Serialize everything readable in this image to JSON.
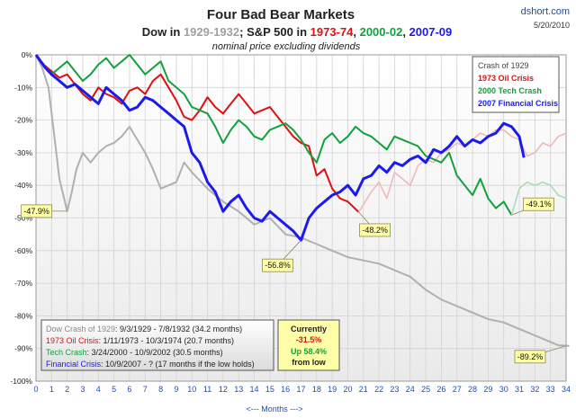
{
  "header": {
    "site": "dshort.com",
    "date": "5/20/2010",
    "title": "Four Bad Bear Markets",
    "subtitle_parts": [
      {
        "text": "Dow in ",
        "color": "#222222"
      },
      {
        "text": "1929-1932",
        "color": "#a0a0a0"
      },
      {
        "text": "; S&P 500 in ",
        "color": "#222222"
      },
      {
        "text": "1973-74",
        "color": "#dd1111"
      },
      {
        "text": ", ",
        "color": "#222222"
      },
      {
        "text": "2000-02",
        "color": "#11a13a"
      },
      {
        "text": ", ",
        "color": "#222222"
      },
      {
        "text": "2007-09",
        "color": "#1a1aee"
      }
    ],
    "note": "nominal price excluding dividends"
  },
  "legend": {
    "title": "Crash of 1929",
    "items": [
      {
        "label": "1973 Oil Crisis",
        "color": "#dd1111"
      },
      {
        "label": "2000 Tech Crash",
        "color": "#11a13a"
      },
      {
        "label": "2007 Financial Crisis",
        "color": "#1a1aee"
      }
    ]
  },
  "info_box": {
    "rows": [
      {
        "name": "Dow Crash of 1929",
        "dates": ": 9/3/1929  - 7/8/1932  (34.2 months)",
        "color": "#888888"
      },
      {
        "name": "1973 Oil Crisis",
        "dates": ": 1/11/1973 - 10/3/1974  (20.7 months)",
        "color": "#dd1111"
      },
      {
        "name": "Tech Crash",
        "dates": ":  3/24/2000  - 10/9/2002  (30.5 months)",
        "color": "#11a13a"
      },
      {
        "name": "Financial Crisis",
        "dates": ": 10/9/2007 - ?  (17 months if the low holds)",
        "color": "#1a1aee"
      }
    ]
  },
  "current_box": {
    "line1": "Currently",
    "line2": "-31.5%",
    "line3": "Up 58.4%",
    "line4": "from low"
  },
  "chart_data": {
    "type": "line",
    "title": "Four Bad Bear Markets",
    "xlabel": "<---  Months  --->",
    "ylabel": "",
    "xlim": [
      0,
      34
    ],
    "ylim": [
      -100,
      0
    ],
    "x_ticks": [
      0,
      1,
      2,
      3,
      4,
      5,
      6,
      7,
      8,
      9,
      10,
      11,
      12,
      13,
      14,
      15,
      16,
      17,
      18,
      19,
      20,
      21,
      22,
      23,
      24,
      25,
      26,
      27,
      28,
      29,
      30,
      31,
      32,
      33,
      34
    ],
    "y_ticks": [
      0,
      -10,
      -20,
      -30,
      -40,
      -50,
      -60,
      -70,
      -80,
      -90,
      -100
    ],
    "y_tick_labels": [
      "0%",
      "-10%",
      "-20%",
      "-30%",
      "-40%",
      "-50%",
      "-60%",
      "-70%",
      "-80%",
      "-90%",
      "-100%"
    ],
    "grid": true,
    "legend_position": "top-right",
    "series": [
      {
        "name": "Crash of 1929",
        "color": "#b0b0b0",
        "x": [
          0,
          0.4,
          0.8,
          1.1,
          1.5,
          2,
          2.3,
          2.6,
          3,
          3.5,
          4,
          4.5,
          5,
          5.5,
          6,
          6.5,
          7,
          7.5,
          8,
          8.5,
          9,
          9.5,
          10,
          11,
          12,
          13,
          14,
          15,
          16,
          17,
          18,
          19,
          20,
          21,
          22,
          23,
          24,
          25,
          26,
          27,
          28,
          29,
          30,
          31,
          32,
          33,
          33.5,
          34.2
        ],
        "y": [
          0,
          -4,
          -10,
          -22,
          -38,
          -47.9,
          -42,
          -35,
          -30,
          -33,
          -30,
          -28,
          -27,
          -25,
          -22,
          -26,
          -30,
          -35,
          -41,
          -40,
          -39,
          -33,
          -36,
          -41,
          -45,
          -48,
          -52,
          -50,
          -55,
          -56,
          -58,
          -60,
          -62,
          -63,
          -64,
          -66,
          -68,
          -72,
          -75,
          -77,
          -79,
          -81,
          -82,
          -84,
          -86,
          -88,
          -89,
          -89.2
        ]
      },
      {
        "name": "1973 Oil Crisis",
        "color": "#dd1111",
        "x": [
          0,
          0.5,
          1,
          1.5,
          2,
          2.5,
          3,
          3.5,
          4,
          4.5,
          5,
          5.5,
          6,
          6.5,
          7,
          7.5,
          8,
          8.5,
          9,
          9.5,
          10,
          10.5,
          11,
          11.5,
          12,
          12.5,
          13,
          13.5,
          14,
          14.5,
          15,
          15.5,
          16,
          16.5,
          17,
          17.5,
          18,
          18.5,
          19,
          19.5,
          20,
          20.7
        ],
        "y": [
          0,
          -3,
          -5,
          -7,
          -6,
          -9,
          -12,
          -14,
          -10,
          -12,
          -13,
          -15,
          -11,
          -10,
          -12,
          -8,
          -6,
          -10,
          -14,
          -19,
          -20,
          -17,
          -13,
          -16,
          -18,
          -15,
          -12,
          -15,
          -18,
          -17,
          -16,
          -19,
          -22,
          -25,
          -27,
          -28,
          -37,
          -35,
          -41,
          -44,
          -45,
          -48.2
        ]
      },
      {
        "name": "1973 Oil Crisis (after trough)",
        "color": "#f2b8b8",
        "x": [
          20.7,
          21.5,
          22,
          22.5,
          23,
          23.5,
          24,
          24.5,
          25,
          25.5,
          26,
          26.5,
          27,
          27.5,
          28,
          28.5,
          29,
          29.5,
          30,
          30.5,
          31,
          31.5,
          32,
          32.5,
          33,
          33.5,
          34
        ],
        "y": [
          -48.2,
          -42,
          -39,
          -44,
          -36,
          -38,
          -40,
          -34,
          -32,
          -33,
          -30,
          -29,
          -27,
          -28,
          -26,
          -24,
          -25,
          -23,
          -23,
          -25,
          -26,
          -31,
          -30,
          -27,
          -28,
          -25,
          -24
        ]
      },
      {
        "name": "2000 Tech Crash",
        "color": "#11a13a",
        "x": [
          0,
          0.5,
          1,
          1.5,
          2,
          2.5,
          3,
          3.5,
          4,
          4.5,
          5,
          5.5,
          6,
          6.5,
          7,
          7.5,
          8,
          8.5,
          9,
          9.5,
          10,
          10.5,
          11,
          11.5,
          12,
          12.5,
          13,
          13.5,
          14,
          14.5,
          15,
          15.5,
          16,
          16.5,
          17,
          17.5,
          18,
          18.5,
          19,
          19.5,
          20,
          20.5,
          21,
          21.5,
          22,
          22.5,
          23,
          23.5,
          24,
          24.5,
          25,
          25.5,
          26,
          26.5,
          27,
          27.5,
          28,
          28.5,
          29,
          29.5,
          30,
          30.5
        ],
        "y": [
          0,
          -3,
          -6,
          -4,
          -2,
          -5,
          -8,
          -6,
          -3,
          -1,
          -4,
          -2,
          0,
          -3,
          -6,
          -4,
          -2,
          -8,
          -10,
          -12,
          -16,
          -17,
          -18,
          -22,
          -27,
          -23,
          -20,
          -22,
          -25,
          -26,
          -23,
          -22,
          -21,
          -23,
          -26,
          -30,
          -33,
          -26,
          -24,
          -27,
          -25,
          -22,
          -24,
          -25,
          -27,
          -29,
          -25,
          -26,
          -27,
          -28,
          -31,
          -32,
          -33,
          -30,
          -37,
          -40,
          -43,
          -38,
          -44,
          -47,
          -45,
          -49.1
        ]
      },
      {
        "name": "2000 Tech Crash (after trough)",
        "color": "#a8dcb8",
        "x": [
          30.5,
          31,
          31.5,
          32,
          32.5,
          33,
          33.5,
          34
        ],
        "y": [
          -49.1,
          -41,
          -39,
          -40,
          -39,
          -40,
          -43,
          -44
        ]
      },
      {
        "name": "2007 Financial Crisis",
        "color": "#1a1aee",
        "x": [
          0,
          0.3,
          0.6,
          1,
          1.5,
          2,
          2.5,
          3,
          3.5,
          4,
          4.5,
          5,
          5.5,
          6,
          6.5,
          7,
          7.5,
          8,
          8.5,
          9,
          9.5,
          10,
          10.5,
          11,
          11.5,
          12,
          12.5,
          13,
          13.5,
          14,
          14.5,
          15,
          15.5,
          16,
          16.5,
          17,
          17.5,
          18,
          18.5,
          19,
          19.5,
          20,
          20.5,
          21,
          21.5,
          22,
          22.5,
          23,
          23.5,
          24,
          24.5,
          25,
          25.5,
          26,
          26.5,
          27,
          27.5,
          28,
          28.5,
          29,
          29.5,
          30,
          30.5,
          31,
          31.3
        ],
        "y": [
          0,
          -2,
          -4,
          -6,
          -8,
          -10,
          -9,
          -11,
          -13,
          -15,
          -10,
          -12,
          -14,
          -17,
          -16,
          -13,
          -14,
          -16,
          -18,
          -20,
          -22,
          -30,
          -33,
          -39,
          -42,
          -48,
          -45,
          -43,
          -47,
          -50,
          -51,
          -48,
          -50,
          -52,
          -54,
          -56.8,
          -50,
          -47,
          -45,
          -43,
          -42,
          -40,
          -43,
          -38,
          -37,
          -34,
          -36,
          -33,
          -34,
          -32,
          -31,
          -33,
          -29,
          -30,
          -28,
          -25,
          -28,
          -26,
          -27,
          -25,
          -24,
          -21,
          -22,
          -25,
          -31.5
        ]
      }
    ],
    "annotations": [
      {
        "text": "-47.9%",
        "x": 2,
        "y": -47.9
      },
      {
        "text": "-48.2%",
        "x": 20.7,
        "y": -48.2
      },
      {
        "text": "-56.8%",
        "x": 17,
        "y": -56.8
      },
      {
        "text": "-49.1%",
        "x": 30.5,
        "y": -49.1
      },
      {
        "text": "-89.2%",
        "x": 34.2,
        "y": -89.2
      }
    ]
  }
}
